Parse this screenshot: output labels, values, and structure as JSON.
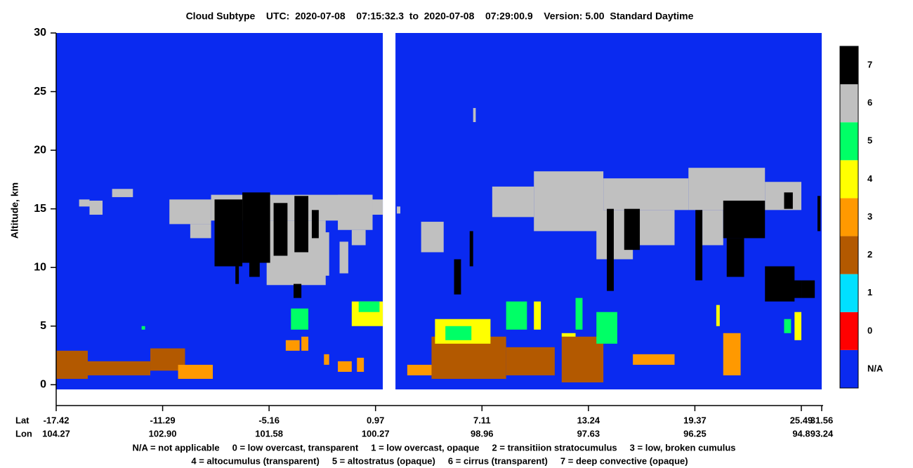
{
  "chart_data": {
    "type": "curtain",
    "title": "Cloud Subtype    UTC:  2020-07-08    07:15:32.3  to  2020-07-08    07:29:00.9    Version: 5.00  Standard Daytime",
    "ylabel": "Altitude, km",
    "ylim": [
      -0.4,
      30
    ],
    "yticks": [
      0,
      5,
      10,
      15,
      20,
      25,
      30
    ],
    "xtick_row_labels": [
      "Lat",
      "Lon"
    ],
    "xticks": [
      -17.42,
      -11.29,
      -5.16,
      0.97,
      7.11,
      13.24,
      19.37,
      25.49,
      31.56
    ],
    "xticks2": [
      104.27,
      {
        "value": 102.9,
        "label": "102.90"
      },
      101.58,
      100.27,
      98.96,
      97.63,
      96.25,
      94.8,
      93.24
    ],
    "background_color": "#0a2af0",
    "gaps": [
      [
        1.39,
        2.12
      ]
    ],
    "colorbar": {
      "labels": [
        "N/A",
        "0",
        "1",
        "2",
        "3",
        "4",
        "5",
        "6",
        "7"
      ],
      "colors": [
        "#0a2af0",
        "#ff0000",
        "#00e0ff",
        "#b35900",
        "#ff9900",
        "#ffff00",
        "#00ff66",
        "#c0c0c0",
        "#000000"
      ]
    },
    "legend_lines": [
      "N/A = not applicable     0 = low overcast, transparent     1 = low overcast, opaque     2 = transitiion stratocumulus     3 = low, broken cumulus",
      "4 = altocumulus (transparent)     5 = altostratus (opaque)     6 = cirrus (transparent)     7 = deep convective (opaque)"
    ],
    "cells": [
      {
        "lat": [
          -16.1,
          -15.5
        ],
        "alt": [
          15.2,
          15.8
        ],
        "code": 6
      },
      {
        "lat": [
          -15.5,
          -14.75
        ],
        "alt": [
          14.5,
          15.7
        ],
        "code": 6
      },
      {
        "lat": [
          -14.2,
          -13.0
        ],
        "alt": [
          16.0,
          16.7
        ],
        "code": 6
      },
      {
        "lat": [
          -10.9,
          -8.5
        ],
        "alt": [
          13.7,
          15.8
        ],
        "code": 6
      },
      {
        "lat": [
          -9.7,
          -8.5
        ],
        "alt": [
          12.5,
          13.7
        ],
        "code": 6
      },
      {
        "lat": [
          -8.5,
          0.8
        ],
        "alt": [
          14.0,
          16.2
        ],
        "code": 6
      },
      {
        "lat": [
          -5.3,
          -1.9
        ],
        "alt": [
          8.5,
          14.0
        ],
        "code": 6
      },
      {
        "lat": [
          -2.9,
          -1.7
        ],
        "alt": [
          9.3,
          13.0
        ],
        "code": 6
      },
      {
        "lat": [
          -1.2,
          0.8
        ],
        "alt": [
          13.2,
          16.2
        ],
        "code": 6
      },
      {
        "lat": [
          -0.4,
          0.4
        ],
        "alt": [
          11.9,
          13.2
        ],
        "code": 6
      },
      {
        "lat": [
          0.8,
          1.39
        ],
        "alt": [
          14.5,
          15.8
        ],
        "code": 6
      },
      {
        "lat": [
          -1.1,
          -0.6
        ],
        "alt": [
          9.5,
          12.2
        ],
        "code": 6
      },
      {
        "lat": [
          -8.3,
          -6.7
        ],
        "alt": [
          10.1,
          15.8
        ],
        "code": 7
      },
      {
        "lat": [
          -7.1,
          -6.9
        ],
        "alt": [
          8.6,
          10.1
        ],
        "code": 7
      },
      {
        "lat": [
          -6.7,
          -5.1
        ],
        "alt": [
          10.4,
          16.4
        ],
        "code": 7
      },
      {
        "lat": [
          -6.3,
          -5.7
        ],
        "alt": [
          9.2,
          11.3
        ],
        "code": 7
      },
      {
        "lat": [
          -4.9,
          -4.1
        ],
        "alt": [
          11.0,
          15.5
        ],
        "code": 7
      },
      {
        "lat": [
          -3.7,
          -2.9
        ],
        "alt": [
          11.3,
          16.1
        ],
        "code": 7
      },
      {
        "lat": [
          -2.7,
          -2.3
        ],
        "alt": [
          12.5,
          14.9
        ],
        "code": 7
      },
      {
        "lat": [
          -3.75,
          -3.3
        ],
        "alt": [
          7.4,
          8.6
        ],
        "code": 7
      },
      {
        "lat": [
          2.2,
          2.4
        ],
        "alt": [
          14.6,
          15.2
        ],
        "code": 6
      },
      {
        "lat": [
          3.6,
          4.9
        ],
        "alt": [
          11.3,
          13.9
        ],
        "code": 6
      },
      {
        "lat": [
          7.7,
          10.1
        ],
        "alt": [
          14.3,
          16.9
        ],
        "code": 6
      },
      {
        "lat": [
          10.1,
          14.1
        ],
        "alt": [
          13.1,
          18.2
        ],
        "code": 6
      },
      {
        "lat": [
          14.1,
          19.0
        ],
        "alt": [
          14.9,
          17.6
        ],
        "code": 6
      },
      {
        "lat": [
          13.7,
          15.8
        ],
        "alt": [
          10.7,
          14.9
        ],
        "code": 6
      },
      {
        "lat": [
          19.0,
          23.4
        ],
        "alt": [
          14.9,
          18.5
        ],
        "code": 6
      },
      {
        "lat": [
          23.4,
          25.5
        ],
        "alt": [
          14.9,
          17.3
        ],
        "code": 6
      },
      {
        "lat": [
          15.8,
          18.2
        ],
        "alt": [
          11.9,
          14.9
        ],
        "code": 6
      },
      {
        "lat": [
          19.8,
          21.0
        ],
        "alt": [
          11.9,
          14.9
        ],
        "code": 6
      },
      {
        "lat": [
          6.6,
          6.75
        ],
        "alt": [
          22.4,
          23.6
        ],
        "code": 6
      },
      {
        "lat": [
          14.3,
          14.7
        ],
        "alt": [
          8.0,
          15.0
        ],
        "code": 7
      },
      {
        "lat": [
          15.3,
          16.2
        ],
        "alt": [
          11.5,
          15.0
        ],
        "code": 7
      },
      {
        "lat": [
          21.0,
          23.4
        ],
        "alt": [
          12.5,
          15.7
        ],
        "code": 7
      },
      {
        "lat": [
          21.2,
          22.2
        ],
        "alt": [
          9.2,
          12.5
        ],
        "code": 7
      },
      {
        "lat": [
          19.4,
          19.8
        ],
        "alt": [
          8.9,
          14.9
        ],
        "code": 7
      },
      {
        "lat": [
          23.4,
          25.1
        ],
        "alt": [
          7.1,
          10.1
        ],
        "code": 7
      },
      {
        "lat": [
          23.8,
          25.5
        ],
        "alt": [
          7.4,
          8.9
        ],
        "code": 7
      },
      {
        "lat": [
          25.5,
          29.5
        ],
        "alt": [
          7.4,
          8.9
        ],
        "code": 7
      },
      {
        "lat": [
          24.5,
          25.0
        ],
        "alt": [
          15.0,
          16.4
        ],
        "code": 7
      },
      {
        "lat": [
          30.3,
          31.2
        ],
        "alt": [
          13.1,
          16.1
        ],
        "code": 7
      },
      {
        "lat": [
          6.4,
          6.6
        ],
        "alt": [
          10.1,
          13.1
        ],
        "code": 7
      },
      {
        "lat": [
          5.5,
          5.9
        ],
        "alt": [
          7.7,
          10.7
        ],
        "code": 7
      },
      {
        "lat": [
          -17.42,
          -15.6
        ],
        "alt": [
          0.5,
          2.9
        ],
        "code": 2
      },
      {
        "lat": [
          -15.6,
          -12.0
        ],
        "alt": [
          0.8,
          2.0
        ],
        "code": 2
      },
      {
        "lat": [
          -12.0,
          -10.0
        ],
        "alt": [
          1.2,
          3.1
        ],
        "code": 2
      },
      {
        "lat": [
          -10.4,
          -8.4
        ],
        "alt": [
          0.5,
          1.7
        ],
        "code": 3
      },
      {
        "lat": [
          -4.2,
          -3.4
        ],
        "alt": [
          2.9,
          3.8
        ],
        "code": 3
      },
      {
        "lat": [
          -3.3,
          -2.9
        ],
        "alt": [
          2.9,
          4.1
        ],
        "code": 3
      },
      {
        "lat": [
          -2.0,
          -1.7
        ],
        "alt": [
          1.7,
          2.6
        ],
        "code": 3
      },
      {
        "lat": [
          -1.2,
          -0.4
        ],
        "alt": [
          1.1,
          2.0
        ],
        "code": 3
      },
      {
        "lat": [
          -0.1,
          0.3
        ],
        "alt": [
          1.1,
          2.3
        ],
        "code": 3
      },
      {
        "lat": [
          -3.9,
          -2.9
        ],
        "alt": [
          4.7,
          6.5
        ],
        "code": 5
      },
      {
        "lat": [
          -0.4,
          1.39
        ],
        "alt": [
          5.0,
          7.1
        ],
        "code": 4
      },
      {
        "lat": [
          0.0,
          1.2
        ],
        "alt": [
          6.2,
          7.1
        ],
        "code": 5
      },
      {
        "lat": [
          -12.5,
          -12.3
        ],
        "alt": [
          4.7,
          5.0
        ],
        "code": 5
      },
      {
        "lat": [
          2.8,
          5.2
        ],
        "alt": [
          0.8,
          1.7
        ],
        "code": 3
      },
      {
        "lat": [
          4.2,
          8.5
        ],
        "alt": [
          0.5,
          4.1
        ],
        "code": 2
      },
      {
        "lat": [
          4.4,
          7.6
        ],
        "alt": [
          3.5,
          5.6
        ],
        "code": 4
      },
      {
        "lat": [
          5.0,
          6.5
        ],
        "alt": [
          3.8,
          5.0
        ],
        "code": 5
      },
      {
        "lat": [
          8.5,
          11.3
        ],
        "alt": [
          0.8,
          3.2
        ],
        "code": 2
      },
      {
        "lat": [
          8.5,
          9.7
        ],
        "alt": [
          4.7,
          7.1
        ],
        "code": 5
      },
      {
        "lat": [
          10.1,
          10.5
        ],
        "alt": [
          4.7,
          7.1
        ],
        "code": 4
      },
      {
        "lat": [
          11.7,
          14.1
        ],
        "alt": [
          0.2,
          4.1
        ],
        "code": 2
      },
      {
        "lat": [
          11.7,
          12.5
        ],
        "alt": [
          4.1,
          4.4
        ],
        "code": 4
      },
      {
        "lat": [
          12.5,
          12.9
        ],
        "alt": [
          4.7,
          7.4
        ],
        "code": 5
      },
      {
        "lat": [
          13.7,
          14.9
        ],
        "alt": [
          3.5,
          6.2
        ],
        "code": 5
      },
      {
        "lat": [
          15.8,
          18.2
        ],
        "alt": [
          1.7,
          2.6
        ],
        "code": 3
      },
      {
        "lat": [
          20.6,
          20.8
        ],
        "alt": [
          5.0,
          6.8
        ],
        "code": 4
      },
      {
        "lat": [
          21.0,
          22.0
        ],
        "alt": [
          0.8,
          4.4
        ],
        "code": 3
      },
      {
        "lat": [
          24.5,
          24.9
        ],
        "alt": [
          4.4,
          5.6
        ],
        "code": 5
      },
      {
        "lat": [
          25.1,
          25.5
        ],
        "alt": [
          3.8,
          6.2
        ],
        "code": 4
      }
    ]
  }
}
